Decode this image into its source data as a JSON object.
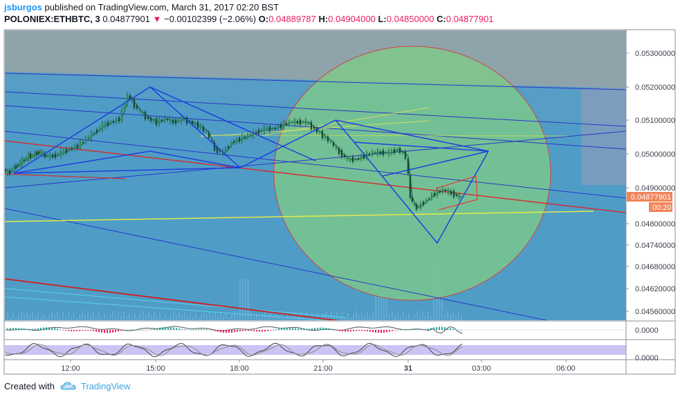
{
  "header": {
    "author": "jsburgos",
    "published_text": "published on TradingView.com, March 31, 2017 02:20 BST",
    "symbol": "POLONIEX:ETHBTC, 3",
    "last": "0.04877901",
    "change_arrow": "▼",
    "change": "−0.00102399 (−2.06%)",
    "o_label": "O:",
    "o_value": "0.04889787",
    "h_label": "H:",
    "h_value": "0.04904000",
    "l_label": "L:",
    "l_value": "0.04850000",
    "c_label": "C:",
    "c_value": "0.04877901"
  },
  "footer": {
    "created_with": "Created with",
    "brand": "TradingView",
    "logo_icon": "tradingview-cloud-icon"
  },
  "price_badge": {
    "price": "0.04877901",
    "countdown": "00:20",
    "color": "#f0845a"
  },
  "oscillator_labels": [
    "0.0000",
    "0.0000"
  ],
  "colors": {
    "main_bg": "#4f9dc6",
    "top_band": "#8fa3ab",
    "circle_fill": "#7dc98a",
    "pattern_blue": "#1e3fe0",
    "red_line": "#d32f2f",
    "yellow_line": "#e6e84a",
    "price_line": "#1e6b4e"
  },
  "chart_data": {
    "type": "candlestick",
    "symbol": "POLONIEX:ETHBTC",
    "interval": "3",
    "y_ticks": [
      "0.05300000",
      "0.05200000",
      "0.05100000",
      "0.05000000",
      "0.04900000",
      "0.04800000",
      "0.04740000",
      "0.04680000",
      "0.04620000",
      "0.04560000"
    ],
    "x_ticks": [
      "12:00",
      "15:00",
      "18:00",
      "21:00",
      "31",
      "03:00",
      "06:00"
    ],
    "ohlc_last": {
      "open": 0.04889787,
      "high": 0.04904,
      "low": 0.0485,
      "close": 0.04877901
    },
    "price_path": [
      [
        0,
        0.0496
      ],
      [
        0.1,
        0.0495
      ],
      [
        0.2,
        0.0496
      ],
      [
        0.3,
        0.0497
      ],
      [
        0.4,
        0.0498
      ],
      [
        0.5,
        0.0499
      ],
      [
        0.6,
        0.05
      ],
      [
        0.7,
        0.05
      ],
      [
        0.8,
        0.0501
      ],
      [
        0.9,
        0.0501
      ],
      [
        1.0,
        0.05
      ],
      [
        1.2,
        0.05
      ],
      [
        1.4,
        0.0501
      ],
      [
        1.6,
        0.0502
      ],
      [
        1.8,
        0.0503
      ],
      [
        2.0,
        0.0505
      ],
      [
        2.2,
        0.0507
      ],
      [
        2.4,
        0.0509
      ],
      [
        2.6,
        0.051
      ],
      [
        2.8,
        0.0511
      ],
      [
        3.0,
        0.0518
      ],
      [
        3.1,
        0.0516
      ],
      [
        3.3,
        0.0513
      ],
      [
        3.5,
        0.0511
      ],
      [
        3.7,
        0.051
      ],
      [
        3.9,
        0.0511
      ],
      [
        4.1,
        0.051
      ],
      [
        4.3,
        0.0511
      ],
      [
        4.5,
        0.051
      ],
      [
        4.7,
        0.0509
      ],
      [
        4.9,
        0.0507
      ],
      [
        5.1,
        0.0502
      ],
      [
        5.3,
        0.0501
      ],
      [
        5.5,
        0.0504
      ],
      [
        5.7,
        0.0505
      ],
      [
        5.9,
        0.0506
      ],
      [
        6.1,
        0.0507
      ],
      [
        6.3,
        0.0508
      ],
      [
        6.5,
        0.0508
      ],
      [
        6.7,
        0.0509
      ],
      [
        6.9,
        0.051
      ],
      [
        7.1,
        0.051
      ],
      [
        7.3,
        0.051
      ],
      [
        7.5,
        0.0508
      ],
      [
        7.7,
        0.0506
      ],
      [
        7.9,
        0.0504
      ],
      [
        8.1,
        0.0501
      ],
      [
        8.3,
        0.0499
      ],
      [
        8.5,
        0.0499
      ],
      [
        8.7,
        0.05
      ],
      [
        8.9,
        0.0501
      ],
      [
        9.1,
        0.0501
      ],
      [
        9.3,
        0.0501
      ],
      [
        9.5,
        0.0502
      ],
      [
        9.7,
        0.05
      ],
      [
        9.8,
        0.0488
      ],
      [
        9.9,
        0.0485
      ],
      [
        10.0,
        0.0485
      ],
      [
        10.2,
        0.0487
      ],
      [
        10.4,
        0.0489
      ],
      [
        10.6,
        0.049
      ],
      [
        10.8,
        0.0489
      ],
      [
        11.0,
        0.04878
      ]
    ]
  }
}
